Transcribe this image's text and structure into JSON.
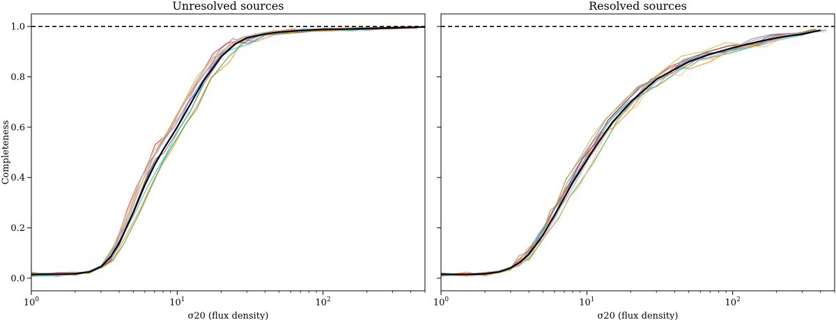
{
  "chart_data": [
    {
      "type": "line",
      "title": "Unresolved sources",
      "xlabel": "σ20 (flux density)",
      "ylabel": "Completeness",
      "xscale": "log",
      "xlim": [
        1,
        500
      ],
      "ylim": [
        -0.05,
        1.05
      ],
      "xticks": [
        {
          "value": 1,
          "base": "10",
          "exp": "0"
        },
        {
          "value": 10,
          "base": "10",
          "exp": "1"
        },
        {
          "value": 100,
          "base": "10",
          "exp": "2"
        }
      ],
      "yticks": [
        "0.0",
        "0.2",
        "0.4",
        "0.6",
        "0.8",
        "1.0"
      ],
      "reference_line": {
        "y": 1.0,
        "style": "dashed",
        "color": "#000000"
      },
      "mean_curve": {
        "color": "#000000",
        "x": [
          1,
          1.5,
          2,
          2.5,
          3,
          3.5,
          4,
          5,
          6,
          7,
          8,
          10,
          12,
          15,
          20,
          25,
          30,
          40,
          50,
          70,
          100,
          150,
          200,
          300,
          500
        ],
        "y": [
          0.015,
          0.016,
          0.018,
          0.025,
          0.045,
          0.085,
          0.14,
          0.26,
          0.37,
          0.45,
          0.51,
          0.6,
          0.68,
          0.78,
          0.88,
          0.93,
          0.955,
          0.97,
          0.978,
          0.984,
          0.988,
          0.99,
          0.992,
          0.995,
          0.998
        ]
      },
      "realization_colors": [
        "#1f77b4",
        "#ff7f0e",
        "#2ca02c",
        "#d62728",
        "#9467bd",
        "#8c564b",
        "#e377c2",
        "#7f7f7f",
        "#bcbd22",
        "#17becf",
        "#aec7e8",
        "#ffbb78"
      ],
      "realization_count": 12
    },
    {
      "type": "line",
      "title": "Resolved sources",
      "xlabel": "σ20 (flux density)",
      "xscale": "log",
      "xlim": [
        1,
        500
      ],
      "ylim": [
        -0.05,
        1.05
      ],
      "xticks": [
        {
          "value": 1,
          "base": "10",
          "exp": "0"
        },
        {
          "value": 10,
          "base": "10",
          "exp": "1"
        },
        {
          "value": 100,
          "base": "10",
          "exp": "2"
        }
      ],
      "reference_line": {
        "y": 1.0,
        "style": "dashed",
        "color": "#000000"
      },
      "mean_curve": {
        "color": "#000000",
        "x": [
          1,
          1.5,
          2,
          2.5,
          3,
          3.5,
          4,
          5,
          6,
          7,
          8,
          10,
          12,
          15,
          20,
          25,
          30,
          40,
          50,
          70,
          100,
          150,
          200,
          300,
          400
        ],
        "y": [
          0.015,
          0.015,
          0.018,
          0.025,
          0.04,
          0.065,
          0.095,
          0.17,
          0.25,
          0.32,
          0.38,
          0.47,
          0.54,
          0.62,
          0.7,
          0.75,
          0.79,
          0.83,
          0.86,
          0.89,
          0.915,
          0.94,
          0.955,
          0.97,
          0.985
        ]
      },
      "realization_colors": [
        "#1f77b4",
        "#ff7f0e",
        "#2ca02c",
        "#d62728",
        "#9467bd",
        "#8c564b",
        "#e377c2",
        "#7f7f7f",
        "#bcbd22",
        "#17becf",
        "#aec7e8",
        "#ffbb78"
      ],
      "realization_count": 12
    }
  ]
}
